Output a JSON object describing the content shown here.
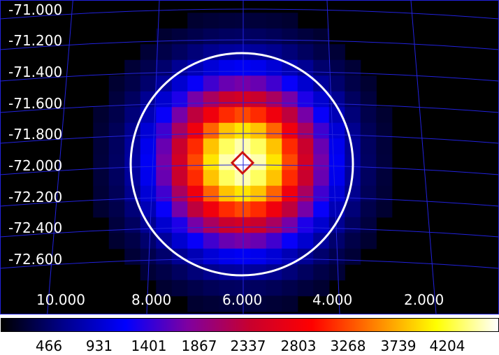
{
  "image": {
    "y_labels": [
      "-71.000",
      "-71.200",
      "-71.400",
      "-71.600",
      "-71.800",
      "-72.000",
      "-72.200",
      "-72.400",
      "-72.600"
    ],
    "x_labels": [
      "10.000",
      "8.000",
      "6.000",
      "4.000",
      "2.000"
    ],
    "source_circle_color": "#ffffff",
    "marker_color": "#cc1111",
    "grid_color": "#2222dd"
  },
  "colorbar": {
    "ticks": [
      "466",
      "931",
      "1401",
      "1867",
      "2337",
      "2803",
      "3268",
      "3739",
      "4204"
    ],
    "colors": [
      "#000000",
      "#00008b",
      "#0000ff",
      "#7f00a0",
      "#c8002e",
      "#ff0000",
      "#ff8000",
      "#ffff00",
      "#ffffff"
    ]
  }
}
